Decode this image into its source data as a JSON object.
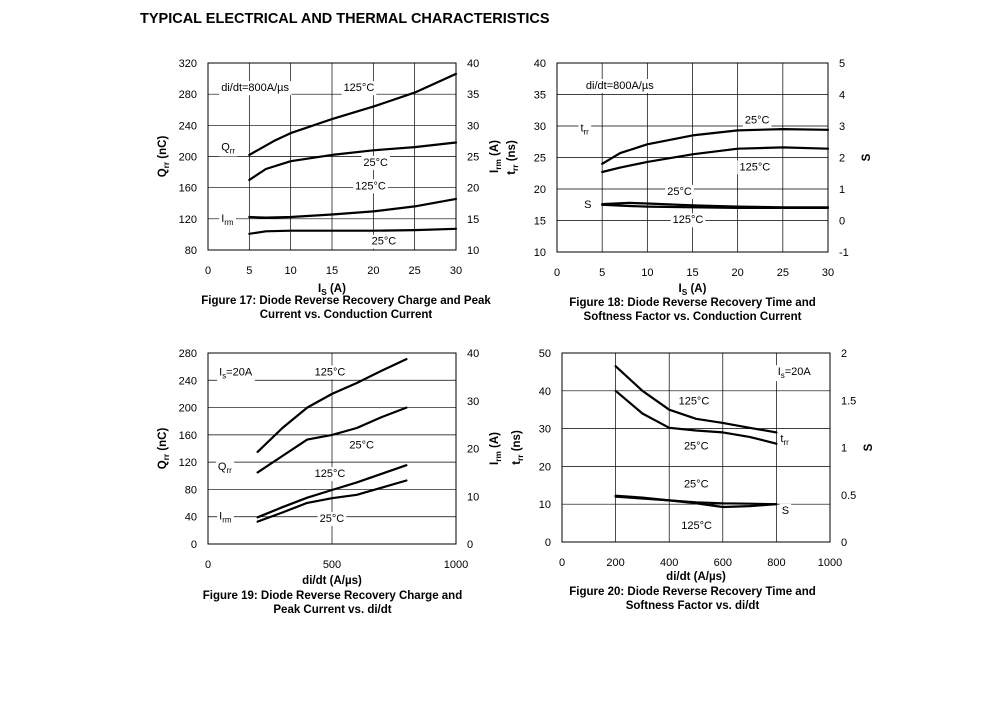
{
  "page": {
    "title": "TYPICAL ELECTRICAL AND THERMAL CHARACTERISTICS"
  },
  "figures": [
    {
      "caption_line1": "Figure 17: Diode Reverse Recovery Charge and Peak",
      "caption_line2": "Current vs. Conduction Current"
    },
    {
      "caption_line1": "Figure 18: Diode Reverse Recovery Time and",
      "caption_line2": "Softness Factor vs. Conduction Current"
    },
    {
      "caption_line1": "Figure 19: Diode Reverse Recovery Charge and",
      "caption_line2": "Peak Current vs. di/dt"
    },
    {
      "caption_line1": "Figure 20: Diode Reverse Recovery Time and",
      "caption_line2": "Softness Factor vs. di/dt"
    }
  ],
  "chart_data": [
    {
      "type": "line",
      "title": "Figure 17: Diode Reverse Recovery Charge and Peak Current vs. Conduction Current",
      "xlabel": {
        "main": "I",
        "sub": "S",
        "rest": " (A)"
      },
      "ylabel": {
        "main": "Q",
        "sub": "rr",
        "rest": " (nC)"
      },
      "y2label": {
        "main": "I",
        "sub": "rm",
        "rest": " (A)"
      },
      "xlim": [
        0,
        30
      ],
      "ylim": [
        80,
        320
      ],
      "y2lim": [
        10,
        40
      ],
      "xticks": [
        "0",
        "5",
        "10",
        "15",
        "20",
        "25",
        "30"
      ],
      "yticks": [
        "80",
        "120",
        "160",
        "200",
        "240",
        "280",
        "320"
      ],
      "y2ticks": [
        "10",
        "15",
        "20",
        "25",
        "30",
        "35",
        "40"
      ],
      "grid": true,
      "series": [
        {
          "axis": "left",
          "x": [
            5,
            8,
            10,
            15,
            20,
            25,
            30
          ],
          "y": [
            202,
            220,
            230,
            248,
            264,
            282,
            306
          ]
        },
        {
          "axis": "left",
          "x": [
            5,
            7,
            10,
            15,
            20,
            25,
            30
          ],
          "y": [
            170,
            184,
            194,
            202,
            208,
            212,
            218
          ]
        },
        {
          "axis": "right",
          "x": [
            5,
            7,
            10,
            15,
            20,
            25,
            30
          ],
          "y": [
            15.3,
            15.2,
            15.3,
            15.7,
            16.2,
            17.0,
            18.2
          ]
        },
        {
          "axis": "right",
          "x": [
            5,
            7,
            10,
            15,
            20,
            25,
            30
          ],
          "y": [
            12.6,
            13.0,
            13.1,
            13.1,
            13.1,
            13.2,
            13.4
          ]
        }
      ],
      "annotations": [
        {
          "text": "di/dt=800A/µs",
          "x": 1.6,
          "y": 289
        },
        {
          "text": "125°C",
          "x": 16.4,
          "y": 289
        },
        {
          "text": "Q",
          "sub": "rr",
          "x": 1.6,
          "y": 213
        },
        {
          "text": "25°C",
          "x": 18.8,
          "y": 193
        },
        {
          "text": "125°C",
          "x": 17.8,
          "y": 163
        },
        {
          "text": "I",
          "sub": "rm",
          "x": 1.6,
          "y": 121
        },
        {
          "text": "25°C",
          "x": 19.8,
          "y": 92
        }
      ]
    },
    {
      "type": "line",
      "title": "Figure 18: Diode Reverse Recovery Time and Softness Factor vs. Conduction Current",
      "xlabel": {
        "main": "I",
        "sub": "S",
        "rest": " (A)"
      },
      "ylabel": {
        "main": "t",
        "sub": "rr",
        "rest": " (ns)"
      },
      "y2label": {
        "main": "S",
        "sub": "",
        "rest": ""
      },
      "xlim": [
        0,
        30
      ],
      "ylim": [
        10,
        40
      ],
      "y2lim": [
        -1,
        5
      ],
      "xticks": [
        "0",
        "5",
        "10",
        "15",
        "20",
        "25",
        "30"
      ],
      "yticks": [
        "10",
        "15",
        "20",
        "25",
        "30",
        "35",
        "40"
      ],
      "y2ticks": [
        "-1",
        "0",
        "1",
        "2",
        "3",
        "4",
        "5"
      ],
      "grid": true,
      "series": [
        {
          "axis": "left",
          "x": [
            5,
            7,
            10,
            15,
            20,
            25,
            30
          ],
          "y": [
            24.0,
            25.7,
            27.1,
            28.5,
            29.3,
            29.5,
            29.4
          ]
        },
        {
          "axis": "left",
          "x": [
            5,
            7,
            10,
            15,
            20,
            25,
            30
          ],
          "y": [
            22.7,
            23.4,
            24.3,
            25.5,
            26.4,
            26.6,
            26.4
          ]
        },
        {
          "axis": "left",
          "x": [
            5,
            8,
            10,
            15,
            20,
            25,
            30
          ],
          "y": [
            17.6,
            17.8,
            17.7,
            17.4,
            17.2,
            17.1,
            17.1
          ]
        },
        {
          "axis": "left",
          "x": [
            5,
            8,
            10,
            15,
            20,
            25,
            30
          ],
          "y": [
            17.5,
            17.3,
            17.2,
            17.1,
            17.0,
            17.0,
            17.0
          ]
        }
      ],
      "annotations": [
        {
          "text": "di/dt=800A/µs",
          "x": 3.2,
          "y": 36.5
        },
        {
          "text": "t",
          "sub": "rr",
          "x": 2.6,
          "y": 29.8
        },
        {
          "text": "25°C",
          "x": 20.8,
          "y": 31.0
        },
        {
          "text": "125°C",
          "x": 20.2,
          "y": 23.6
        },
        {
          "text": "25°C",
          "x": 12.2,
          "y": 19.7
        },
        {
          "text": "S",
          "x": 3.0,
          "y": 17.6
        },
        {
          "text": "125°C",
          "x": 12.8,
          "y": 15.2
        }
      ]
    },
    {
      "type": "line",
      "title": "Figure 19: Diode Reverse Recovery Charge and Peak Current vs. di/dt",
      "xlabel": {
        "main": "di/dt (A/µs)",
        "sub": "",
        "rest": ""
      },
      "ylabel": {
        "main": "Q",
        "sub": "rr",
        "rest": " (nC)"
      },
      "y2label": {
        "main": "I",
        "sub": "rm",
        "rest": " (A)"
      },
      "xlim": [
        0,
        1000
      ],
      "ylim": [
        0,
        280
      ],
      "y2lim": [
        0,
        40
      ],
      "xticks": [
        "0",
        "500",
        "1000"
      ],
      "yticks": [
        "0",
        "40",
        "80",
        "120",
        "160",
        "200",
        "240",
        "280"
      ],
      "y2ticks": [
        "0",
        "10",
        "20",
        "30",
        "40"
      ],
      "grid": true,
      "series": [
        {
          "axis": "left",
          "x": [
            200,
            300,
            400,
            500,
            600,
            700,
            800
          ],
          "y": [
            135,
            170,
            200,
            220,
            236,
            254,
            271
          ]
        },
        {
          "axis": "left",
          "x": [
            200,
            300,
            400,
            500,
            600,
            700,
            800
          ],
          "y": [
            105,
            129,
            153,
            160,
            170,
            186,
            200
          ]
        },
        {
          "axis": "right",
          "x": [
            200,
            300,
            400,
            500,
            600,
            700,
            800
          ],
          "y": [
            5.6,
            7.7,
            9.7,
            11.3,
            12.9,
            14.7,
            16.5
          ]
        },
        {
          "axis": "right",
          "x": [
            200,
            300,
            400,
            500,
            600,
            700,
            800
          ],
          "y": [
            4.7,
            6.6,
            8.6,
            9.6,
            10.3,
            11.8,
            13.3
          ]
        }
      ],
      "annotations": [
        {
          "text": "I",
          "sub": "s",
          "rest": "=20A",
          "x": 45,
          "y": 253
        },
        {
          "text": "125°C",
          "x": 430,
          "y": 253
        },
        {
          "text": "25°C",
          "x": 570,
          "y": 146
        },
        {
          "text": "Q",
          "sub": "rr",
          "x": 40,
          "y": 114
        },
        {
          "text": "125°C",
          "x": 430,
          "y": 104
        },
        {
          "text": "I",
          "sub": "rm",
          "x": 45,
          "y": 42
        },
        {
          "text": "25°C",
          "x": 450,
          "y": 38
        }
      ]
    },
    {
      "type": "line",
      "title": "Figure 20: Diode Reverse Recovery Time and Softness Factor vs. di/dt",
      "xlabel": {
        "main": "di/dt (A/µs)",
        "sub": "",
        "rest": ""
      },
      "ylabel": {
        "main": "t",
        "sub": "rr",
        "rest": " (ns)"
      },
      "y2label": {
        "main": "S",
        "sub": "",
        "rest": ""
      },
      "xlim": [
        0,
        1000
      ],
      "ylim": [
        0,
        50
      ],
      "y2lim": [
        0,
        2
      ],
      "xticks": [
        "0",
        "200",
        "400",
        "600",
        "800",
        "1000"
      ],
      "yticks": [
        "0",
        "10",
        "20",
        "30",
        "40",
        "50"
      ],
      "y2ticks": [
        "0",
        "0.5",
        "1",
        "1.5",
        "2"
      ],
      "grid": true,
      "series": [
        {
          "axis": "left",
          "x": [
            200,
            300,
            400,
            500,
            600,
            700,
            800
          ],
          "y": [
            46.5,
            40.0,
            35.0,
            32.6,
            31.5,
            30.2,
            29.0
          ]
        },
        {
          "axis": "left",
          "x": [
            200,
            300,
            400,
            500,
            600,
            700,
            800
          ],
          "y": [
            40.0,
            34.0,
            30.2,
            29.5,
            29.0,
            27.8,
            26.0
          ]
        },
        {
          "axis": "right",
          "x": [
            200,
            300,
            400,
            500,
            600,
            700,
            800
          ],
          "y": [
            0.48,
            0.46,
            0.44,
            0.42,
            0.41,
            0.405,
            0.4
          ]
        },
        {
          "axis": "right",
          "x": [
            200,
            300,
            400,
            500,
            600,
            700,
            800
          ],
          "y": [
            0.49,
            0.47,
            0.44,
            0.41,
            0.37,
            0.38,
            0.4
          ]
        }
      ],
      "annotations": [
        {
          "text": "I",
          "sub": "s",
          "rest": "=20A",
          "x": 805,
          "y": 45.2
        },
        {
          "text": "125°C",
          "x": 435,
          "y": 37.5
        },
        {
          "text": "t",
          "sub": "rr",
          "x": 815,
          "y": 27.5
        },
        {
          "text": "25°C",
          "x": 455,
          "y": 25.5
        },
        {
          "text": "25°C",
          "x": 455,
          "y": 15.5
        },
        {
          "text": "S",
          "x": 820,
          "y": 8.5
        },
        {
          "text": "125°C",
          "x": 445,
          "y": 4.5
        }
      ]
    }
  ]
}
